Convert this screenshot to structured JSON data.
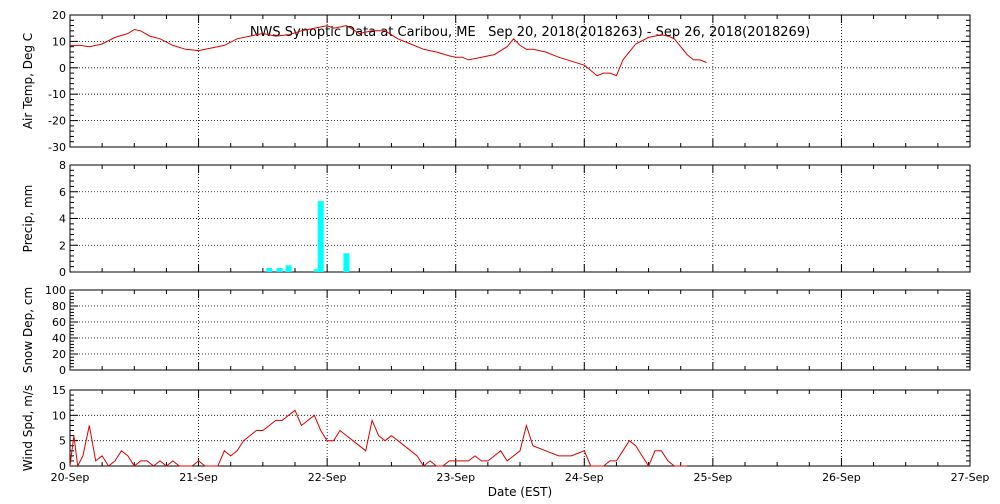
{
  "title": "NWS Synoptic Data at Caribou, ME   Sep 20, 2018(2018263) - Sep 26, 2018(2018269)",
  "xlabel": "Date (EST)",
  "x_ticks": [
    "20-Sep",
    "21-Sep",
    "22-Sep",
    "23-Sep",
    "24-Sep",
    "25-Sep",
    "26-Sep",
    "27-Sep"
  ],
  "colors": {
    "temp": "#dd0000",
    "precip": "#00ffff",
    "wind": "#dd0000",
    "axis": "#000000"
  },
  "chart_data": [
    {
      "type": "line",
      "ylabel": "Air Temp, Deg C",
      "ylim": [
        -30,
        20
      ],
      "yticks": [
        20,
        10,
        0,
        -10,
        -20,
        -30
      ],
      "grid": true,
      "x_unit": "days since 20-Sep",
      "series": [
        {
          "x": [
            0,
            0.08,
            0.15,
            0.25,
            0.35,
            0.45,
            0.5,
            0.55,
            0.62,
            0.7,
            0.8,
            0.9,
            1.0,
            1.1,
            1.2,
            1.3,
            1.4,
            1.5,
            1.6,
            1.7,
            1.8,
            1.9,
            2.0,
            2.05,
            2.15,
            2.25,
            2.35,
            2.45,
            2.55,
            2.65,
            2.75,
            2.85,
            2.95,
            3.0,
            3.05,
            3.1,
            3.2,
            3.3,
            3.4,
            3.45,
            3.5,
            3.55,
            3.6,
            3.7,
            3.8,
            3.9,
            4.0,
            4.05,
            4.1,
            4.15,
            4.2,
            4.25,
            4.3,
            4.4,
            4.5,
            4.6,
            4.65,
            4.7,
            4.75,
            4.8,
            4.85,
            4.9,
            4.95
          ],
          "values": [
            8.5,
            8.5,
            8,
            9,
            11.5,
            13,
            14.5,
            14,
            12,
            11,
            8.5,
            7,
            6.5,
            7.5,
            8.5,
            11,
            12,
            13,
            12,
            12.5,
            14,
            15,
            16,
            15,
            16,
            13,
            14,
            14,
            11,
            9,
            7,
            6,
            4.5,
            4,
            4,
            3,
            4,
            5,
            8,
            11,
            8.5,
            7,
            7,
            6,
            4,
            2.5,
            1,
            -1,
            -3,
            -2,
            -2,
            -3,
            3,
            9,
            11.5,
            12.5,
            12,
            11,
            8,
            5,
            3,
            3,
            2
          ]
        }
      ]
    },
    {
      "type": "bar",
      "ylabel": "Precip, mm",
      "ylim": [
        0,
        8
      ],
      "yticks": [
        8,
        6,
        4,
        2,
        0
      ],
      "grid": true,
      "x_unit": "days since 20-Sep",
      "series": [
        {
          "x": [
            1.55,
            1.63,
            1.7,
            1.92,
            1.95,
            2.15
          ],
          "values": [
            0.3,
            0.3,
            0.5,
            0.2,
            5.3,
            1.4
          ]
        }
      ]
    },
    {
      "type": "line",
      "ylabel": "Snow Dep, cm",
      "ylim": [
        0,
        100
      ],
      "yticks": [
        100,
        80,
        60,
        40,
        20,
        0
      ],
      "grid": true,
      "series": []
    },
    {
      "type": "line",
      "ylabel": "Wind Spd, m/s",
      "ylim": [
        0,
        15
      ],
      "yticks": [
        15,
        10,
        5,
        0
      ],
      "grid": true,
      "x_unit": "days since 20-Sep",
      "series": [
        {
          "x": [
            0,
            0.03,
            0.06,
            0.1,
            0.15,
            0.2,
            0.25,
            0.3,
            0.35,
            0.4,
            0.45,
            0.5,
            0.55,
            0.6,
            0.65,
            0.7,
            0.75,
            0.8,
            0.85,
            0.9,
            0.95,
            1.0,
            1.05,
            1.1,
            1.15,
            1.2,
            1.25,
            1.3,
            1.35,
            1.4,
            1.45,
            1.5,
            1.55,
            1.6,
            1.65,
            1.7,
            1.75,
            1.8,
            1.85,
            1.9,
            1.95,
            2.0,
            2.05,
            2.1,
            2.15,
            2.2,
            2.25,
            2.3,
            2.35,
            2.4,
            2.45,
            2.5,
            2.55,
            2.6,
            2.65,
            2.7,
            2.75,
            2.8,
            2.85,
            2.9,
            2.95,
            3.0,
            3.05,
            3.1,
            3.15,
            3.2,
            3.25,
            3.3,
            3.35,
            3.4,
            3.45,
            3.5,
            3.55,
            3.6,
            3.7,
            3.8,
            3.9,
            4.0,
            4.05,
            4.1,
            4.15,
            4.2,
            4.25,
            4.3,
            4.35,
            4.4,
            4.45,
            4.5,
            4.55,
            4.6,
            4.65,
            4.7,
            4.75,
            4.8
          ],
          "values": [
            0,
            6,
            0,
            2,
            8,
            1,
            2,
            0,
            1,
            3,
            2,
            0,
            1,
            1,
            0,
            1,
            0,
            1,
            0,
            0,
            0,
            1,
            0,
            0,
            0,
            3,
            2,
            3,
            5,
            6,
            7,
            7,
            8,
            9,
            9,
            10,
            11,
            8,
            9,
            10,
            7,
            5,
            5,
            7,
            6,
            5,
            4,
            3,
            9,
            6,
            5,
            6,
            5,
            4,
            3,
            2,
            0,
            1,
            0,
            0,
            1,
            1,
            1,
            1,
            2,
            1,
            1,
            2,
            3,
            1,
            2,
            3,
            8,
            4,
            3,
            2,
            2,
            3,
            0,
            0,
            0,
            1,
            1,
            3,
            5,
            4,
            2,
            0,
            3,
            3,
            1,
            0,
            0,
            0
          ]
        }
      ]
    }
  ]
}
